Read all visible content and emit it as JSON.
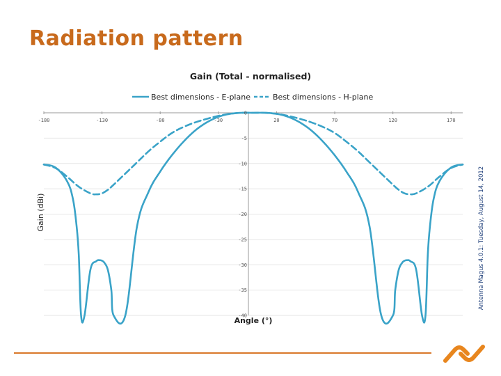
{
  "slide": {
    "title": "Radiation pattern",
    "accent_color": "#c86a1c"
  },
  "chart_data": {
    "type": "line",
    "title": "Gain (Total - normalised)",
    "xlabel": "Angle (°)",
    "ylabel": "Gain (dBi)",
    "xlim": [
      -180,
      180
    ],
    "ylim": [
      -40,
      0
    ],
    "x_ticks": [
      -180,
      -130,
      -80,
      -30,
      20,
      70,
      120,
      170
    ],
    "x_tick_labels": [
      "-180",
      "-130",
      "-80",
      "-30",
      "20",
      "70",
      "120",
      "170"
    ],
    "y_ticks": [
      0,
      -5,
      -10,
      -15,
      -20,
      -25,
      -30,
      -35,
      -40
    ],
    "y_tick_labels": [
      "0",
      "-5",
      "-10",
      "-15",
      "-20",
      "-25",
      "-30",
      "-35",
      "-40"
    ],
    "grid": true,
    "legend_position": "top",
    "series": [
      {
        "name": "Best dimensions - E-plane",
        "style": "solid",
        "color": "#3aa3c8",
        "x": [
          -180,
          -170,
          -160,
          -155,
          -152,
          -150,
          -148,
          -145,
          -140,
          -135,
          -132,
          -130,
          -128,
          -125,
          -122,
          -120,
          -110,
          -100,
          -90,
          -80,
          -70,
          -60,
          -50,
          -40,
          -30,
          -20,
          -10,
          0,
          10,
          20,
          30,
          40,
          50,
          60,
          70,
          80,
          90,
          100,
          110,
          120,
          122,
          125,
          128,
          130,
          132,
          135,
          140,
          145,
          148,
          150,
          152,
          155,
          160,
          170,
          180
        ],
        "y": [
          -10.2,
          -10.8,
          -13.5,
          -17,
          -22,
          -28,
          -40,
          -40,
          -31,
          -29.3,
          -29.1,
          -29.2,
          -29.6,
          -31,
          -35,
          -40,
          -40,
          -22.5,
          -15.6,
          -11.6,
          -8.4,
          -5.7,
          -3.5,
          -1.9,
          -0.8,
          -0.2,
          0,
          0,
          0,
          -0.2,
          -0.8,
          -1.9,
          -3.5,
          -5.7,
          -8.4,
          -11.6,
          -15.6,
          -22.5,
          -40,
          -40,
          -35,
          -31,
          -29.6,
          -29.2,
          -29.1,
          -29.3,
          -31,
          -40,
          -40,
          -28,
          -22,
          -17,
          -13.5,
          -10.8,
          -10.2
        ]
      },
      {
        "name": "Best dimensions - H-plane",
        "style": "dashed",
        "color": "#3aa3c8",
        "x": [
          -180,
          -170,
          -160,
          -150,
          -140,
          -135,
          -130,
          -125,
          -120,
          -110,
          -100,
          -90,
          -80,
          -70,
          -60,
          -50,
          -40,
          -30,
          -20,
          -10,
          0,
          10,
          20,
          30,
          40,
          50,
          60,
          70,
          80,
          90,
          100,
          110,
          120,
          125,
          130,
          135,
          140,
          150,
          160,
          170,
          180
        ],
        "y": [
          -10.2,
          -10.9,
          -12.6,
          -14.6,
          -15.9,
          -16.1,
          -15.9,
          -15.2,
          -14.2,
          -12.0,
          -9.8,
          -7.6,
          -5.7,
          -4.0,
          -2.8,
          -1.9,
          -1.2,
          -0.6,
          -0.2,
          0,
          0,
          0,
          -0.2,
          -0.6,
          -1.2,
          -1.9,
          -2.8,
          -4.0,
          -5.7,
          -7.6,
          -9.8,
          -12.0,
          -14.2,
          -15.2,
          -15.9,
          -16.1,
          -15.9,
          -14.6,
          -12.6,
          -10.9,
          -10.2
        ]
      }
    ]
  },
  "watermark": {
    "text": "Antenna Magus 4.0.1: Tuesday, August 14, 2012",
    "color": "#1f3f7a"
  },
  "footer": {
    "line_color": "#d9782a",
    "logo_color": "#e8861e",
    "logo_icon": "chain-link-logo-icon"
  }
}
